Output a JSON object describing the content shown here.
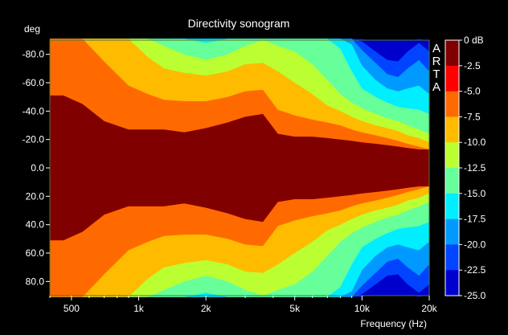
{
  "chart_data": {
    "type": "heatmap",
    "title": "Directivity sonogram",
    "xlabel": "Frequency (Hz)",
    "ylabel": "deg",
    "x_scale": "log",
    "xlim": [
      400,
      20000
    ],
    "ylim": [
      -90,
      90
    ],
    "x_ticks": [
      500,
      1000,
      2000,
      5000,
      10000,
      20000
    ],
    "x_tick_labels": [
      "500",
      "1k",
      "2k",
      "5k",
      "10k",
      "20k"
    ],
    "y_ticks": [
      -80,
      -60,
      -40,
      -20,
      0,
      20,
      40,
      60,
      80
    ],
    "y_tick_labels": [
      "-80.0",
      "-60.0",
      "-40.0",
      "-20.0",
      "0.0",
      "20.0",
      "40.0",
      "60.0",
      "80.0"
    ],
    "watermark": [
      "A",
      "R",
      "T",
      "A"
    ],
    "colorbar": {
      "labels": [
        "0 dB",
        "-2.5",
        "-5.0",
        "-7.5",
        "-10.0",
        "-12.5",
        "-15.0",
        "-17.5",
        "-20.0",
        "-22.5",
        "-25.0"
      ],
      "colors": [
        "#800000",
        "#ff0000",
        "#ff6a00",
        "#ffbb00",
        "#bbff33",
        "#66ff99",
        "#00eeff",
        "#0099ff",
        "#0044ff",
        "#0000cc"
      ]
    },
    "contour_angles_deg": {
      "frequency_hz": [
        400,
        460,
        560,
        700,
        900,
        1100,
        1300,
        1600,
        2000,
        2500,
        3000,
        3600,
        4200,
        5000,
        6000,
        7000,
        8000,
        9000,
        10000,
        11500,
        13000,
        14500,
        16000,
        18000,
        20000
      ],
      "levels_db": [
        -2.5,
        -5.0,
        -7.5,
        -10.0,
        -12.5,
        -15.0,
        -17.5,
        -20.0,
        -22.5
      ],
      "angles": [
        [
          51,
          51,
          45,
          33,
          27,
          27,
          27,
          25,
          28,
          32,
          36,
          38,
          24,
          22,
          22,
          21,
          20,
          19,
          18,
          17,
          16,
          15,
          14,
          13,
          13
        ],
        [
          91,
          91,
          91,
          75,
          58,
          52,
          48,
          47,
          47,
          50,
          54,
          55,
          41,
          37,
          34,
          32,
          30,
          27,
          25,
          23,
          21,
          19,
          17,
          15,
          13
        ],
        [
          91,
          91,
          91,
          91,
          91,
          78,
          70,
          67,
          65,
          68,
          73,
          74,
          68,
          60,
          52,
          44,
          40,
          36,
          33,
          30,
          28,
          26,
          23,
          21,
          18
        ],
        [
          91,
          91,
          91,
          91,
          91,
          91,
          86,
          80,
          76,
          80,
          86,
          90,
          86,
          82,
          73,
          62,
          52,
          46,
          42,
          38,
          35,
          33,
          30,
          27,
          24
        ],
        [
          91,
          91,
          91,
          91,
          91,
          91,
          91,
          91,
          88,
          91,
          91,
          91,
          91,
          91,
          91,
          91,
          84,
          68,
          56,
          50,
          46,
          43,
          42,
          41,
          38
        ],
        [
          91,
          91,
          91,
          91,
          91,
          91,
          91,
          91,
          91,
          91,
          91,
          91,
          91,
          91,
          91,
          91,
          91,
          87,
          72,
          62,
          56,
          54,
          56,
          58,
          52
        ],
        [
          91,
          91,
          91,
          91,
          91,
          91,
          91,
          91,
          91,
          91,
          91,
          91,
          91,
          91,
          91,
          91,
          91,
          91,
          83,
          74,
          66,
          64,
          70,
          76,
          68
        ],
        [
          91,
          91,
          91,
          91,
          91,
          91,
          91,
          91,
          91,
          91,
          91,
          91,
          91,
          91,
          91,
          91,
          91,
          91,
          89,
          82,
          76,
          75,
          82,
          88,
          82
        ],
        [
          91,
          91,
          91,
          91,
          91,
          91,
          91,
          91,
          91,
          91,
          91,
          91,
          91,
          91,
          91,
          91,
          91,
          91,
          91,
          88,
          84,
          84,
          89,
          91,
          89
        ]
      ]
    }
  }
}
